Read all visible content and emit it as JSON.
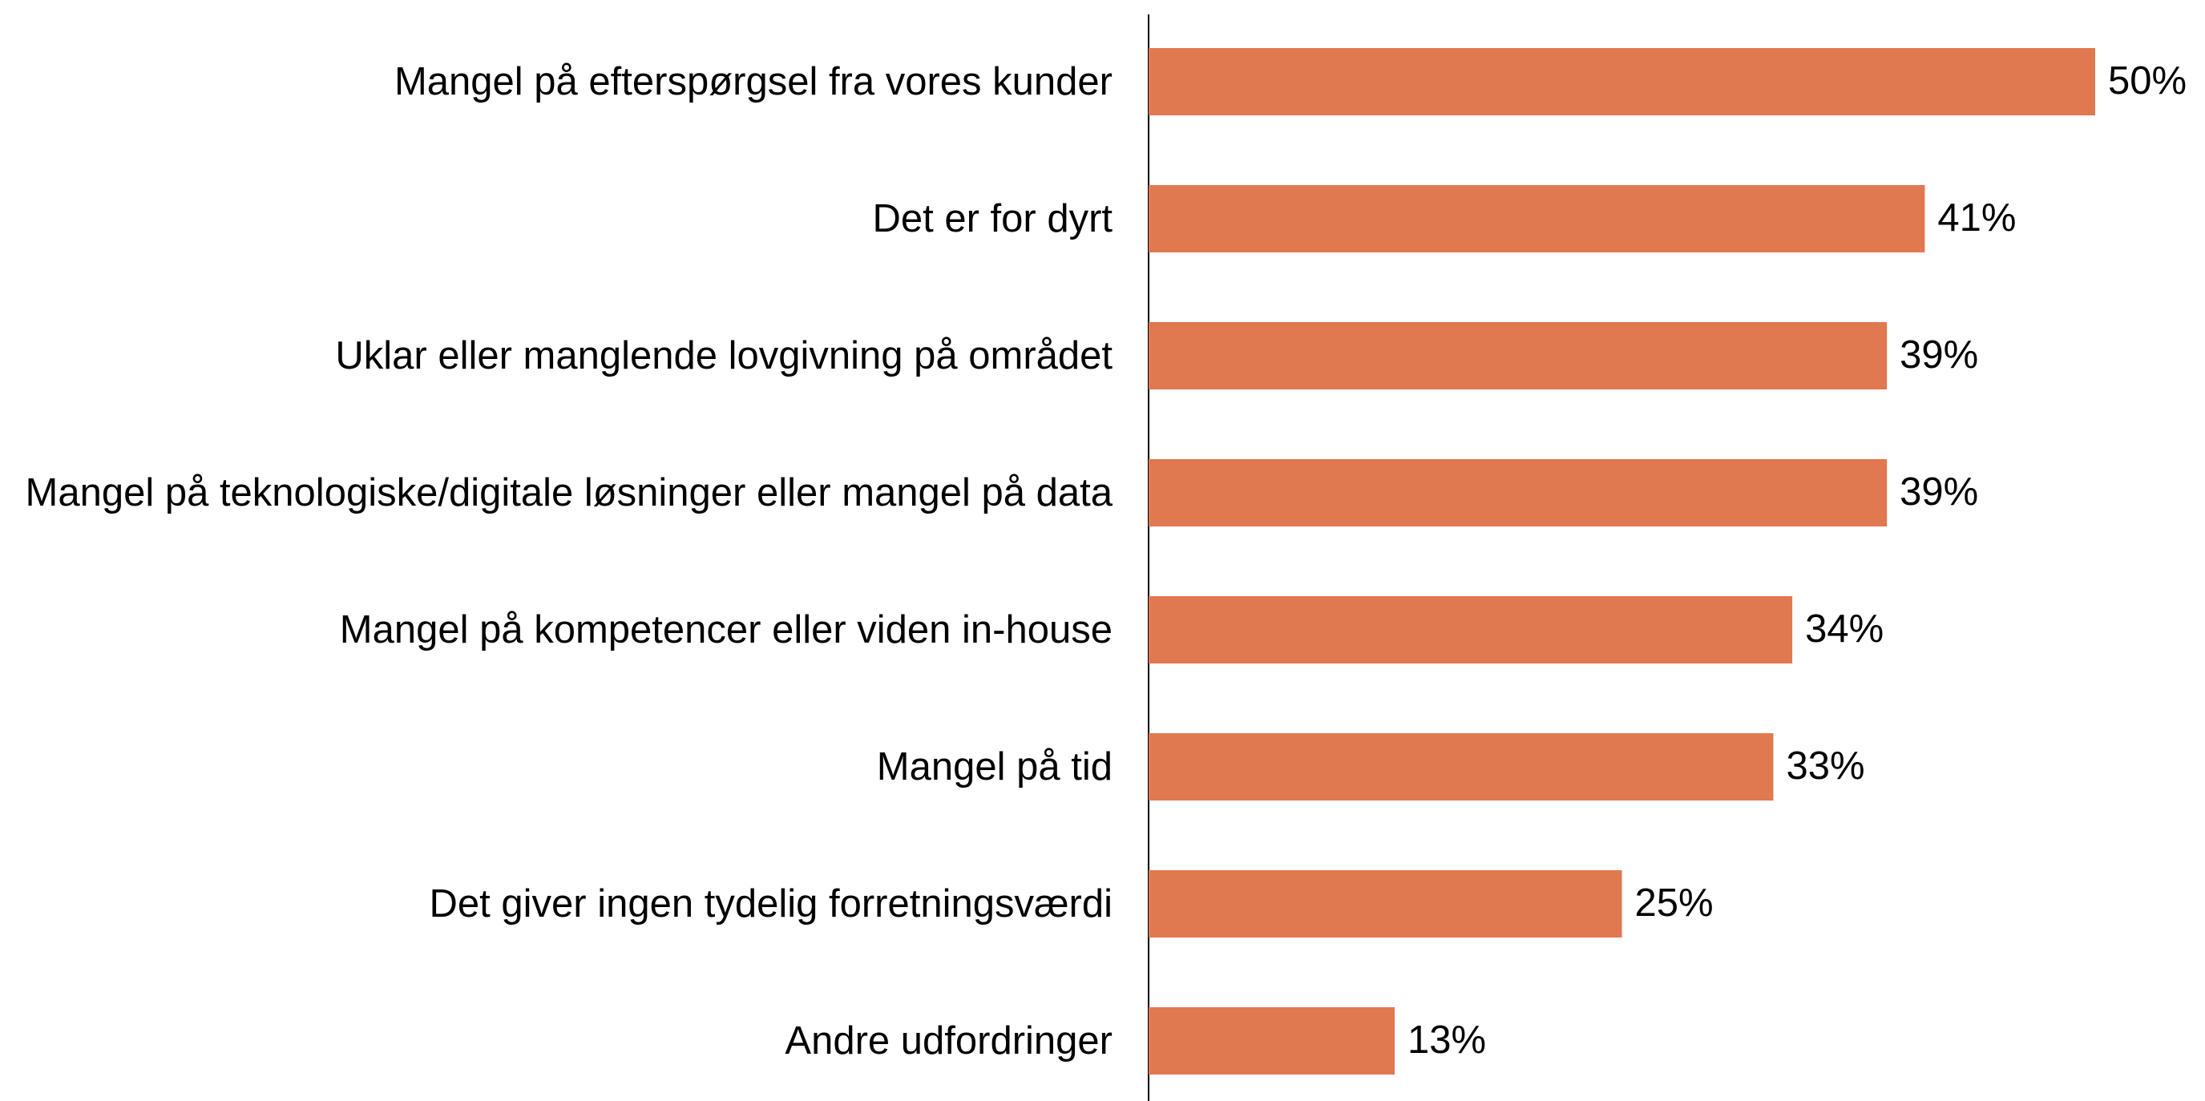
{
  "chart_data": {
    "type": "bar",
    "orientation": "horizontal",
    "categories": [
      "Mangel på efterspørgsel fra vores kunder",
      "Det er for dyrt",
      "Uklar eller manglende lovgivning på området",
      "Mangel på teknologiske/digitale løsninger eller mangel på data",
      "Mangel på kompetencer eller viden in-house",
      "Mangel på tid",
      "Det giver ingen tydelig forretningsværdi",
      "Andre udfordringer"
    ],
    "values": [
      50,
      41,
      39,
      39,
      34,
      33,
      25,
      13
    ],
    "value_labels": [
      "50%",
      "41%",
      "39%",
      "39%",
      "34%",
      "33%",
      "25%",
      "13%"
    ],
    "color": "#e07850"
  }
}
